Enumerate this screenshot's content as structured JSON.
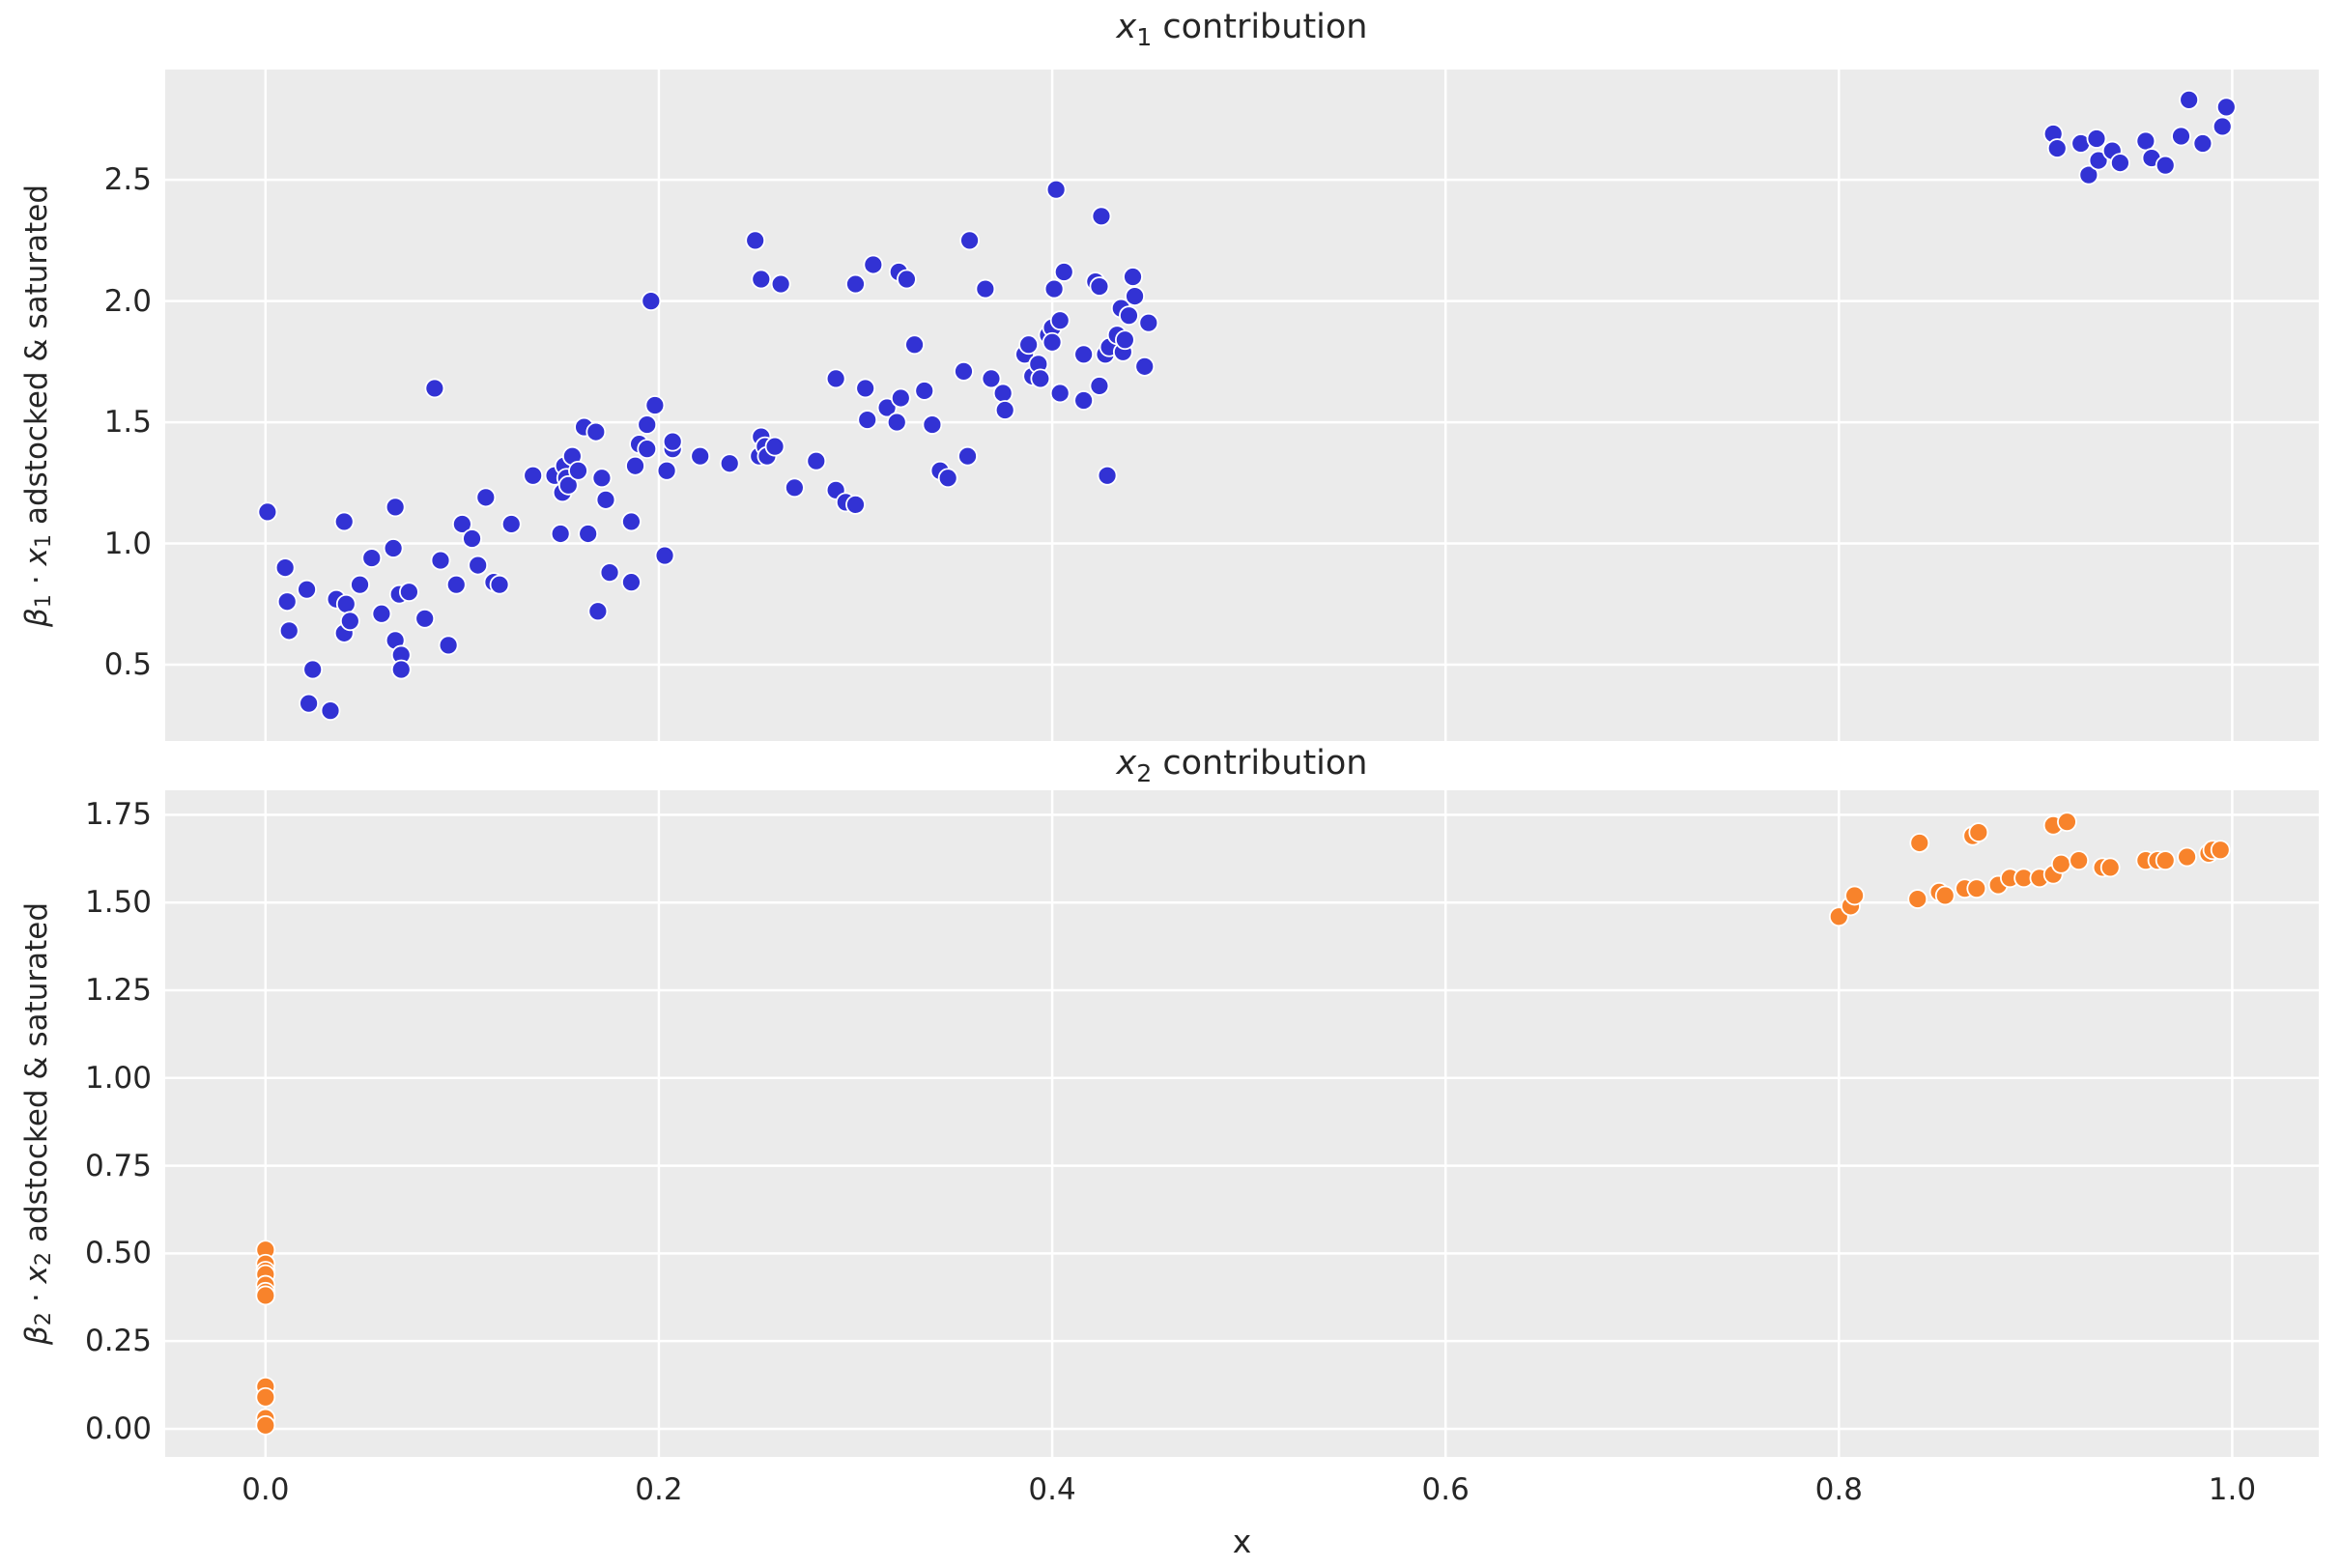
{
  "figure": {
    "xlabel": "x"
  },
  "colors": {
    "plot_background": "#ebebeb",
    "grid": "#ffffff",
    "series1_blue": "#3232d4",
    "series2_orange": "#f8832b",
    "text": "#262626"
  },
  "chart_data": [
    {
      "type": "scatter",
      "title": "x1 contribution",
      "title_parts": {
        "var": "x",
        "sub": "1",
        "rest": " contribution"
      },
      "ylabel": "β1 · x1 adstocked & saturated",
      "ylabel_parts": {
        "sym1": "β",
        "sub1": "1",
        "mid": " · ",
        "sym2": "x",
        "sub2": "1",
        "rest": " adstocked & saturated"
      },
      "series_name": "x1-contribution",
      "color": "#3232d4",
      "xlim": [
        -0.051,
        1.044
      ],
      "ylim": [
        0.185,
        2.955
      ],
      "grid": true,
      "xticks": {
        "values": [
          0.0,
          0.2,
          0.4,
          0.6,
          0.8,
          1.0
        ],
        "labels": []
      },
      "yticks": {
        "values": [
          0.5,
          1.0,
          1.5,
          2.0,
          2.5
        ],
        "labels": [
          "0.5",
          "1.0",
          "1.5",
          "2.0",
          "2.5"
        ]
      },
      "points": [
        [
          0.001,
          1.13
        ],
        [
          0.01,
          0.9
        ],
        [
          0.011,
          0.76
        ],
        [
          0.012,
          0.64
        ],
        [
          0.021,
          0.81
        ],
        [
          0.022,
          0.34
        ],
        [
          0.024,
          0.48
        ],
        [
          0.033,
          0.31
        ],
        [
          0.036,
          0.77
        ],
        [
          0.04,
          1.09
        ],
        [
          0.04,
          0.63
        ],
        [
          0.041,
          0.75
        ],
        [
          0.043,
          0.68
        ],
        [
          0.048,
          0.83
        ],
        [
          0.054,
          0.94
        ],
        [
          0.059,
          0.71
        ],
        [
          0.065,
          0.98
        ],
        [
          0.066,
          0.6
        ],
        [
          0.066,
          1.15
        ],
        [
          0.068,
          0.79
        ],
        [
          0.069,
          0.54
        ],
        [
          0.069,
          0.48
        ],
        [
          0.073,
          0.8
        ],
        [
          0.081,
          0.69
        ],
        [
          0.086,
          1.64
        ],
        [
          0.089,
          0.93
        ],
        [
          0.093,
          0.58
        ],
        [
          0.097,
          0.83
        ],
        [
          0.1,
          1.08
        ],
        [
          0.105,
          1.02
        ],
        [
          0.108,
          0.91
        ],
        [
          0.112,
          1.19
        ],
        [
          0.116,
          0.84
        ],
        [
          0.119,
          0.83
        ],
        [
          0.125,
          1.08
        ],
        [
          0.136,
          1.28
        ],
        [
          0.147,
          1.28
        ],
        [
          0.15,
          1.04
        ],
        [
          0.151,
          1.21
        ],
        [
          0.152,
          1.32
        ],
        [
          0.153,
          1.27
        ],
        [
          0.154,
          1.24
        ],
        [
          0.156,
          1.36
        ],
        [
          0.159,
          1.3
        ],
        [
          0.162,
          1.48
        ],
        [
          0.164,
          1.04
        ],
        [
          0.168,
          1.46
        ],
        [
          0.169,
          0.72
        ],
        [
          0.171,
          1.27
        ],
        [
          0.173,
          1.18
        ],
        [
          0.175,
          0.88
        ],
        [
          0.186,
          1.09
        ],
        [
          0.186,
          0.84
        ],
        [
          0.188,
          1.32
        ],
        [
          0.19,
          1.41
        ],
        [
          0.194,
          1.39
        ],
        [
          0.194,
          1.49
        ],
        [
          0.196,
          2.0
        ],
        [
          0.198,
          1.57
        ],
        [
          0.203,
          0.95
        ],
        [
          0.204,
          1.3
        ],
        [
          0.207,
          1.39
        ],
        [
          0.207,
          1.42
        ],
        [
          0.221,
          1.36
        ],
        [
          0.236,
          1.33
        ],
        [
          0.249,
          2.25
        ],
        [
          0.251,
          1.36
        ],
        [
          0.252,
          2.09
        ],
        [
          0.252,
          1.44
        ],
        [
          0.254,
          1.4
        ],
        [
          0.255,
          1.36
        ],
        [
          0.259,
          1.4
        ],
        [
          0.262,
          2.07
        ],
        [
          0.269,
          1.23
        ],
        [
          0.28,
          1.34
        ],
        [
          0.29,
          1.68
        ],
        [
          0.29,
          1.22
        ],
        [
          0.295,
          1.17
        ],
        [
          0.3,
          2.07
        ],
        [
          0.3,
          1.16
        ],
        [
          0.305,
          1.64
        ],
        [
          0.306,
          1.51
        ],
        [
          0.309,
          2.15
        ],
        [
          0.316,
          1.56
        ],
        [
          0.321,
          1.5
        ],
        [
          0.322,
          2.12
        ],
        [
          0.323,
          1.6
        ],
        [
          0.326,
          2.09
        ],
        [
          0.33,
          1.82
        ],
        [
          0.335,
          1.63
        ],
        [
          0.339,
          1.49
        ],
        [
          0.343,
          1.3
        ],
        [
          0.347,
          1.27
        ],
        [
          0.355,
          1.71
        ],
        [
          0.357,
          1.36
        ],
        [
          0.358,
          2.25
        ],
        [
          0.366,
          2.05
        ],
        [
          0.369,
          1.68
        ],
        [
          0.375,
          1.62
        ],
        [
          0.376,
          1.55
        ],
        [
          0.386,
          1.78
        ],
        [
          0.388,
          1.82
        ],
        [
          0.39,
          1.69
        ],
        [
          0.393,
          1.74
        ],
        [
          0.394,
          1.68
        ],
        [
          0.398,
          1.86
        ],
        [
          0.4,
          1.89
        ],
        [
          0.4,
          1.83
        ],
        [
          0.401,
          2.05
        ],
        [
          0.402,
          2.46
        ],
        [
          0.404,
          1.92
        ],
        [
          0.404,
          1.62
        ],
        [
          0.406,
          2.12
        ],
        [
          0.416,
          1.78
        ],
        [
          0.416,
          1.59
        ],
        [
          0.422,
          2.08
        ],
        [
          0.424,
          2.06
        ],
        [
          0.424,
          1.65
        ],
        [
          0.425,
          2.35
        ],
        [
          0.427,
          1.78
        ],
        [
          0.428,
          1.28
        ],
        [
          0.429,
          1.81
        ],
        [
          0.433,
          1.86
        ],
        [
          0.435,
          1.97
        ],
        [
          0.436,
          1.79
        ],
        [
          0.437,
          1.84
        ],
        [
          0.439,
          1.94
        ],
        [
          0.441,
          2.1
        ],
        [
          0.442,
          2.02
        ],
        [
          0.447,
          1.73
        ],
        [
          0.449,
          1.91
        ],
        [
          0.909,
          2.69
        ],
        [
          0.911,
          2.63
        ],
        [
          0.923,
          2.65
        ],
        [
          0.927,
          2.52
        ],
        [
          0.931,
          2.67
        ],
        [
          0.932,
          2.58
        ],
        [
          0.939,
          2.62
        ],
        [
          0.943,
          2.57
        ],
        [
          0.956,
          2.66
        ],
        [
          0.959,
          2.59
        ],
        [
          0.966,
          2.56
        ],
        [
          0.974,
          2.68
        ],
        [
          0.978,
          2.83
        ],
        [
          0.985,
          2.65
        ],
        [
          0.995,
          2.72
        ],
        [
          0.997,
          2.8
        ]
      ]
    },
    {
      "type": "scatter",
      "title": "x2 contribution",
      "title_parts": {
        "var": "x",
        "sub": "2",
        "rest": " contribution"
      },
      "ylabel": "β2 · x2 adstocked & saturated",
      "ylabel_parts": {
        "sym1": "β",
        "sub1": "2",
        "mid": " · ",
        "sym2": "x",
        "sub2": "2",
        "rest": " adstocked & saturated"
      },
      "series_name": "x2-contribution",
      "color": "#f8832b",
      "xlim": [
        -0.051,
        1.044
      ],
      "ylim": [
        -0.08,
        1.82
      ],
      "grid": true,
      "xticks": {
        "values": [
          0.0,
          0.2,
          0.4,
          0.6,
          0.8,
          1.0
        ],
        "labels": [
          "0.0",
          "0.2",
          "0.4",
          "0.6",
          "0.8",
          "1.0"
        ]
      },
      "yticks": {
        "values": [
          0.0,
          0.25,
          0.5,
          0.75,
          1.0,
          1.25,
          1.5,
          1.75
        ],
        "labels": [
          "0.00",
          "0.25",
          "0.50",
          "0.75",
          "1.00",
          "1.25",
          "1.50",
          "1.75"
        ]
      },
      "points": [
        [
          0.0,
          0.51
        ],
        [
          0.0,
          0.47
        ],
        [
          0.0,
          0.45
        ],
        [
          0.0,
          0.44
        ],
        [
          0.0,
          0.41
        ],
        [
          0.0,
          0.39
        ],
        [
          0.0,
          0.38
        ],
        [
          0.0,
          0.12
        ],
        [
          0.0,
          0.09
        ],
        [
          0.0,
          0.03
        ],
        [
          0.0,
          0.01
        ],
        [
          0.8,
          1.46
        ],
        [
          0.806,
          1.49
        ],
        [
          0.808,
          1.52
        ],
        [
          0.84,
          1.51
        ],
        [
          0.841,
          1.67
        ],
        [
          0.851,
          1.53
        ],
        [
          0.854,
          1.52
        ],
        [
          0.864,
          1.54
        ],
        [
          0.868,
          1.69
        ],
        [
          0.87,
          1.54
        ],
        [
          0.871,
          1.7
        ],
        [
          0.881,
          1.55
        ],
        [
          0.887,
          1.57
        ],
        [
          0.894,
          1.57
        ],
        [
          0.902,
          1.57
        ],
        [
          0.909,
          1.72
        ],
        [
          0.909,
          1.58
        ],
        [
          0.913,
          1.61
        ],
        [
          0.916,
          1.73
        ],
        [
          0.922,
          1.62
        ],
        [
          0.934,
          1.6
        ],
        [
          0.938,
          1.6
        ],
        [
          0.956,
          1.62
        ],
        [
          0.962,
          1.62
        ],
        [
          0.966,
          1.62
        ],
        [
          0.977,
          1.63
        ],
        [
          0.988,
          1.64
        ],
        [
          0.99,
          1.65
        ],
        [
          0.994,
          1.65
        ]
      ]
    }
  ]
}
